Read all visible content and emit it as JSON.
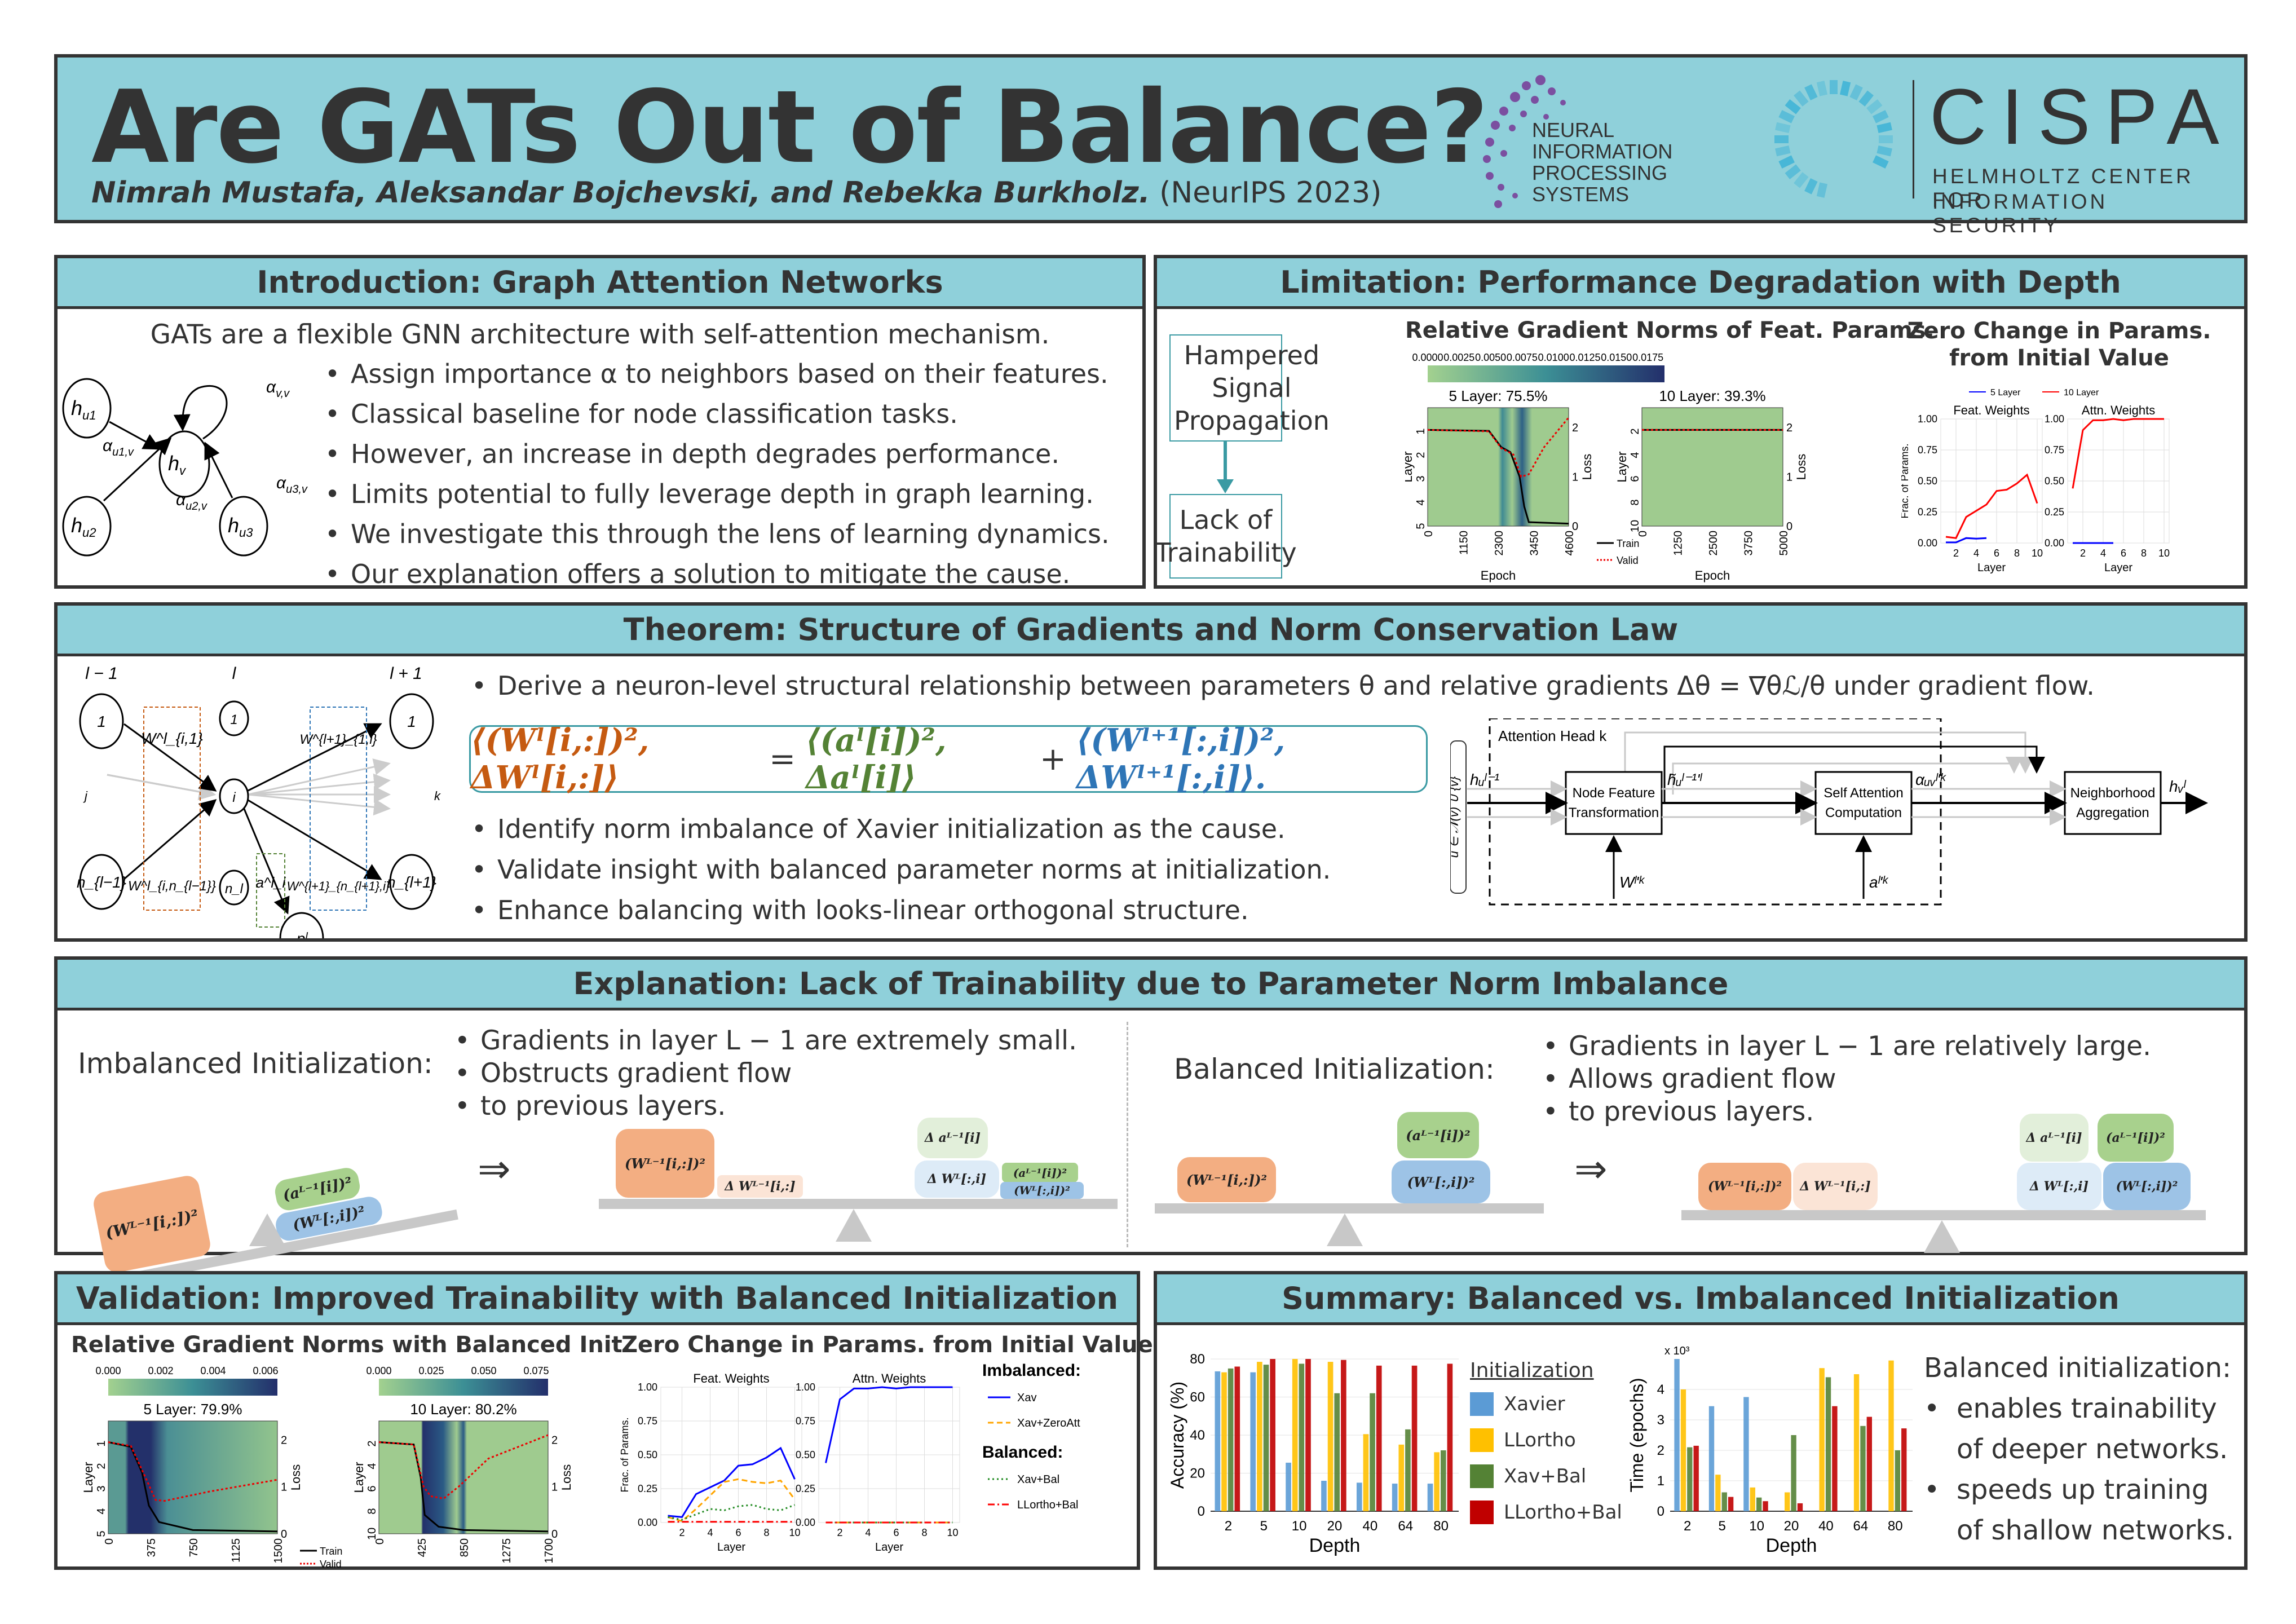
{
  "header": {
    "title": "Are GATs Out of Balance?",
    "authors": "Nimrah Mustafa, Aleksandar Bojchevski, and Rebekka Burkholz.",
    "venue": "(NeurIPS 2023)",
    "neurips_logo": [
      "NEURAL",
      "INFORMATION",
      "PROCESSING",
      "SYSTEMS"
    ],
    "cispa_logo": {
      "name": "CISPA",
      "line1": "HELMHOLTZ CENTER FOR",
      "line2": "INFORMATION SECURITY"
    }
  },
  "intro": {
    "heading": "Introduction: Graph Attention Networks",
    "lead": "GATs are a flexible GNN architecture with self-attention mechanism.",
    "bullets": [
      "Assign importance α to neighbors based on their features.",
      "Classical baseline for node classification tasks.",
      "However, an increase in depth degrades performance.",
      "Limits potential to fully leverage depth in graph learning.",
      "We investigate this through the lens of learning dynamics.",
      "Our explanation offers a solution to mitigate the cause."
    ],
    "graph": {
      "nodes": [
        "h_u1",
        "h_v",
        "h_u2",
        "h_u3"
      ],
      "edges": [
        "α_u1,v",
        "α_u2,v",
        "α_u3,v",
        "α_v,v"
      ]
    }
  },
  "limitation": {
    "heading": "Limitation: Performance Degradation with Depth",
    "box1": "Hampered Signal Propagation",
    "box2": "Lack of Trainability",
    "heatmap_title": "Relative Gradient Norms of Feat. Params.",
    "zero_title_line1": "Zero Change in Params.",
    "zero_title_line2": "from Initial Value"
  },
  "theorem": {
    "heading": "Theorem: Structure of Gradients and Norm Conservation Law",
    "bullet1": "Derive a neuron-level structural relationship between parameters θ and relative gradients Δθ = ∇θℒ/θ under gradient flow.",
    "equation": {
      "lhs": "⟨(Wˡ[i,:])², ΔWˡ[i,:]⟩",
      "eq": "=",
      "mid": "⟨(aˡ[i])², Δaˡ[i]⟩",
      "plus": "+",
      "rhs": "⟨(Wˡ⁺¹[:,i])², ΔWˡ⁺¹[:,i]⟩."
    },
    "bullets": [
      "Identify norm imbalance of Xavier initialization as the cause.",
      "Validate insight with balanced parameter norms at initialization.",
      "Enhance balancing with looks-linear orthogonal structure."
    ],
    "network": {
      "layer_labels": [
        "l − 1",
        "l",
        "l + 1"
      ],
      "nodes_left": [
        "1",
        "n_{l−1}"
      ],
      "nodes_mid": [
        "1",
        "i",
        "n_l"
      ],
      "nodes_right": [
        "1",
        "n_{l+1}"
      ],
      "out_node": "pˡ",
      "labels": [
        "W^l_{i,1}",
        "W^l_{i,n_{l−1}}",
        "a^l_i",
        "W^{l+1}_{1,i}",
        "W^{l+1}_{n_{l+1},i}",
        "j",
        "k"
      ]
    },
    "flow": {
      "head_label": "Attention Head k",
      "input_set": "u ∈ 𝒩(v) ∪ {v}",
      "input": "hᵤˡ⁻¹",
      "box1": [
        "Node Feature",
        "Transformation"
      ],
      "mid1": "h̃ᵤˡ⁻¹'ˡ",
      "box2": [
        "Self Attention",
        "Computation"
      ],
      "mid2": "αᵤᵥˡ'ᵏ",
      "box3": [
        "Neighborhood",
        "Aggregation"
      ],
      "output": "hᵥˡ",
      "param1": "Wˡ'ᵏ",
      "param2": "aˡ'ᵏ"
    }
  },
  "explanation": {
    "heading": "Explanation:  Lack of Trainability due to Parameter Norm Imbalance",
    "imbalanced": {
      "label": "Imbalanced Initialization:",
      "bullets": [
        "Gradients in layer L − 1 are extremely small.",
        "Obstructs gradient flow",
        "to previous layers."
      ],
      "blocks": {
        "w_prev": "(Wᴸ⁻¹[i,:])²",
        "dw_prev": "Δ Wᴸ⁻¹[i,:]",
        "a": "(aᴸ⁻¹[i])²",
        "da": "Δ aᴸ⁻¹[i]",
        "w": "(Wᴸ[:,i])²",
        "dw": "Δ Wᴸ[:,i]"
      }
    },
    "balanced": {
      "label": "Balanced Initialization:",
      "bullets": [
        "Gradients in layer L − 1 are relatively large.",
        "Allows gradient flow",
        "to previous layers."
      ]
    },
    "implies": "⇒"
  },
  "validation": {
    "heading": "Validation: Improved Trainability with Balanced Initialization",
    "heatmap_title": "Relative Gradient Norms with Balanced Init.",
    "zero_title": "Zero Change in Params. from Initial Value",
    "legend_imbalanced": "Imbalanced:",
    "legend_balanced": "Balanced:"
  },
  "summary": {
    "heading": "Summary: Balanced vs. Imbalanced Initialization",
    "text_title": "Balanced initialization:",
    "bullets": [
      "enables trainability",
      "of deeper networks.",
      "speeds up training",
      "of shallow networks."
    ],
    "legend_title": "Initialization"
  },
  "chart_data": [
    {
      "id": "limitation-heatmap-5",
      "type": "heatmap",
      "title": "5 Layer: 75.5%",
      "colorbar_ticks": [
        "0.0000",
        "0.0025",
        "0.0050",
        "0.0075",
        "0.0100",
        "0.0125",
        "0.0150",
        "0.0175"
      ],
      "xlabel": "Epoch",
      "ylabel": "Layer",
      "y2label": "Loss",
      "x_ticks": [
        "0",
        "1150",
        "2300",
        "3450",
        "4600"
      ],
      "y_ticks": [
        "1",
        "2",
        "3",
        "4",
        "5"
      ],
      "y2_ticks": [
        "0",
        "1",
        "2"
      ],
      "legend": [
        "Train",
        "Valid"
      ],
      "train_loss": [
        [
          0,
          1.95
        ],
        [
          2000,
          1.93
        ],
        [
          2400,
          1.6
        ],
        [
          2700,
          1.5
        ],
        [
          3000,
          1.0
        ],
        [
          3150,
          0.4
        ],
        [
          3300,
          0.08
        ],
        [
          4600,
          0.05
        ]
      ],
      "valid_loss": [
        [
          0,
          1.95
        ],
        [
          2000,
          1.92
        ],
        [
          2400,
          1.58
        ],
        [
          2800,
          1.45
        ],
        [
          3050,
          1.0
        ],
        [
          3300,
          1.05
        ],
        [
          3800,
          1.6
        ],
        [
          4600,
          2.2
        ]
      ]
    },
    {
      "id": "limitation-heatmap-10",
      "type": "heatmap",
      "title": "10 Layer: 39.3%",
      "xlabel": "Epoch",
      "ylabel": "Layer",
      "y2label": "Loss",
      "x_ticks": [
        "0",
        "1250",
        "2500",
        "3750",
        "5000"
      ],
      "y_ticks": [
        "2",
        "4",
        "6",
        "8",
        "10"
      ],
      "y2_ticks": [
        "0",
        "1",
        "2"
      ],
      "train_loss": [
        [
          0,
          1.95
        ],
        [
          5000,
          1.95
        ]
      ],
      "valid_loss": [
        [
          0,
          1.95
        ],
        [
          5000,
          1.95
        ]
      ]
    },
    {
      "id": "limitation-zero-change",
      "type": "line",
      "legend": [
        "5 Layer",
        "10 Layer"
      ],
      "panels": [
        "Feat. Weights",
        "Attn. Weights"
      ],
      "xlabel": "Layer",
      "ylabel": "Frac. of Params.",
      "ylim": [
        0,
        1
      ],
      "y_ticks": [
        "0.00",
        "0.25",
        "0.50",
        "0.75",
        "1.00"
      ],
      "x_ticks": [
        "2",
        "4",
        "6",
        "8",
        "10"
      ],
      "series": [
        {
          "name": "5 Layer",
          "panel": "Feat. Weights",
          "x": [
            1,
            2,
            3,
            4,
            5
          ],
          "values": [
            0.005,
            0.005,
            0.04,
            0.035,
            0.04
          ]
        },
        {
          "name": "10 Layer",
          "panel": "Feat. Weights",
          "x": [
            1,
            2,
            3,
            4,
            5,
            6,
            7,
            8,
            9,
            10
          ],
          "values": [
            0.05,
            0.04,
            0.21,
            0.26,
            0.31,
            0.42,
            0.43,
            0.48,
            0.55,
            0.32
          ]
        },
        {
          "name": "5 Layer",
          "panel": "Attn. Weights",
          "x": [
            1,
            2,
            3,
            4,
            5
          ],
          "values": [
            0.0,
            0.0,
            0.0,
            0.0,
            0.0
          ]
        },
        {
          "name": "10 Layer",
          "panel": "Attn. Weights",
          "x": [
            1,
            2,
            3,
            4,
            5,
            6,
            7,
            8,
            9,
            10
          ],
          "values": [
            0.44,
            0.91,
            0.99,
            0.99,
            1.0,
            0.99,
            1.0,
            1.0,
            1.0,
            1.0
          ]
        }
      ]
    },
    {
      "id": "validation-heatmap-5",
      "type": "heatmap",
      "title": "5 Layer: 79.9%",
      "colorbar_ticks": [
        "0.000",
        "0.002",
        "0.004",
        "0.006"
      ],
      "xlabel": "Epoch",
      "ylabel": "Layer",
      "y2label": "Loss",
      "x_ticks": [
        "0",
        "375",
        "750",
        "1125",
        "1500"
      ],
      "y_ticks": [
        "1",
        "2",
        "3",
        "4",
        "5"
      ],
      "y2_ticks": [
        "0",
        "1",
        "2"
      ],
      "legend": [
        "Train",
        "Valid"
      ],
      "train_loss": [
        [
          0,
          1.95
        ],
        [
          200,
          1.85
        ],
        [
          300,
          1.3
        ],
        [
          360,
          0.6
        ],
        [
          450,
          0.25
        ],
        [
          750,
          0.08
        ],
        [
          1500,
          0.05
        ]
      ],
      "valid_loss": [
        [
          0,
          1.95
        ],
        [
          200,
          1.87
        ],
        [
          330,
          1.2
        ],
        [
          420,
          0.72
        ],
        [
          500,
          0.7
        ],
        [
          900,
          0.9
        ],
        [
          1500,
          1.15
        ]
      ]
    },
    {
      "id": "validation-heatmap-10",
      "type": "heatmap",
      "title": "10 Layer: 80.2%",
      "colorbar_ticks": [
        "0.000",
        "0.025",
        "0.050",
        "0.075"
      ],
      "xlabel": "Epoch",
      "ylabel": "Layer",
      "y2label": "Loss",
      "x_ticks": [
        "0",
        "425",
        "850",
        "1275",
        "1700"
      ],
      "y_ticks": [
        "2",
        "4",
        "6",
        "8",
        "10"
      ],
      "y2_ticks": [
        "0",
        "1",
        "2"
      ],
      "train_loss": [
        [
          0,
          1.95
        ],
        [
          350,
          1.9
        ],
        [
          420,
          1.2
        ],
        [
          460,
          0.4
        ],
        [
          600,
          0.15
        ],
        [
          850,
          0.08
        ],
        [
          1700,
          0.05
        ]
      ],
      "valid_loss": [
        [
          0,
          1.95
        ],
        [
          350,
          1.9
        ],
        [
          450,
          1.0
        ],
        [
          520,
          0.8
        ],
        [
          650,
          0.75
        ],
        [
          800,
          1.0
        ],
        [
          1100,
          1.6
        ],
        [
          1700,
          2.1
        ]
      ]
    },
    {
      "id": "validation-zero-change",
      "type": "line",
      "panels": [
        "Feat. Weights",
        "Attn. Weights"
      ],
      "xlabel": "Layer",
      "ylabel": "Frac. of Params.",
      "ylim": [
        0,
        1
      ],
      "y_ticks": [
        "0.00",
        "0.25",
        "0.50",
        "0.75",
        "1.00"
      ],
      "x_ticks": [
        "2",
        "4",
        "6",
        "8",
        "10"
      ],
      "legend_groups": {
        "Imbalanced:": [
          "Xav",
          "Xav+ZeroAtt"
        ],
        "Balanced:": [
          "Xav+Bal",
          "LLortho+Bal"
        ]
      },
      "series": [
        {
          "name": "Xav",
          "panel": "Feat. Weights",
          "color": "#0000ff",
          "style": "solid",
          "values": [
            0.05,
            0.04,
            0.21,
            0.26,
            0.31,
            0.42,
            0.43,
            0.48,
            0.55,
            0.32
          ]
        },
        {
          "name": "Xav+ZeroAtt",
          "panel": "Feat. Weights",
          "color": "#ffa500",
          "style": "dashed",
          "values": [
            0.04,
            0.01,
            0.1,
            0.2,
            0.3,
            0.32,
            0.3,
            0.29,
            0.31,
            0.17
          ]
        },
        {
          "name": "Xav+Bal",
          "panel": "Feat. Weights",
          "color": "#228b22",
          "style": "dotted",
          "values": [
            0.04,
            0.02,
            0.06,
            0.1,
            0.09,
            0.12,
            0.13,
            0.1,
            0.09,
            0.13
          ]
        },
        {
          "name": "LLortho+Bal",
          "panel": "Feat. Weights",
          "color": "#ff0000",
          "style": "dashdot",
          "values": [
            0.005,
            0.005,
            0.005,
            0.005,
            0.005,
            0.005,
            0.005,
            0.005,
            0.005,
            0.005
          ]
        },
        {
          "name": "Xav",
          "panel": "Attn. Weights",
          "color": "#0000ff",
          "style": "solid",
          "values": [
            0.44,
            0.91,
            0.99,
            0.99,
            1.0,
            0.99,
            1.0,
            1.0,
            1.0,
            1.0
          ]
        },
        {
          "name": "Xav+ZeroAtt",
          "panel": "Attn. Weights",
          "color": "#ffa500",
          "style": "dashed",
          "values": [
            0,
            0,
            0,
            0,
            0,
            0,
            0,
            0,
            0,
            0
          ]
        },
        {
          "name": "Xav+Bal",
          "panel": "Attn. Weights",
          "color": "#228b22",
          "style": "dotted",
          "values": [
            0,
            0,
            0,
            0,
            0,
            0,
            0,
            0,
            0,
            0
          ]
        },
        {
          "name": "LLortho+Bal",
          "panel": "Attn. Weights",
          "color": "#ff0000",
          "style": "dashdot",
          "values": [
            0,
            0,
            0,
            0,
            0,
            0,
            0,
            0,
            0,
            0
          ]
        }
      ]
    },
    {
      "id": "summary-accuracy",
      "type": "bar",
      "categories": [
        "2",
        "5",
        "10",
        "20",
        "40",
        "64",
        "80"
      ],
      "xlabel": "Depth",
      "ylabel": "Accuracy (%)",
      "ylim": [
        0,
        80
      ],
      "y_ticks": [
        "0",
        "20",
        "40",
        "60",
        "80"
      ],
      "series": [
        {
          "name": "Xavier",
          "color": "#5b9bd5",
          "values": [
            73.5,
            73,
            25.5,
            16,
            15,
            14.5,
            14.5
          ]
        },
        {
          "name": "LLortho",
          "color": "#ffc000",
          "values": [
            73,
            78.5,
            80,
            78.5,
            40.5,
            35,
            31
          ]
        },
        {
          "name": "Xav+Bal",
          "color": "#548235",
          "values": [
            75,
            77,
            77.5,
            62,
            62,
            43,
            32
          ]
        },
        {
          "name": "LLortho+Bal",
          "color": "#c00000",
          "values": [
            76,
            80,
            80,
            79.5,
            76.5,
            76.5,
            77.5
          ]
        }
      ]
    },
    {
      "id": "summary-time",
      "type": "bar",
      "categories": [
        "2",
        "5",
        "10",
        "20",
        "40",
        "64",
        "80"
      ],
      "xlabel": "Depth",
      "ylabel": "Time (epochs)",
      "y_multiplier": "x 10³",
      "ylim": [
        0,
        5
      ],
      "y_ticks": [
        "0",
        "1",
        "2",
        "3",
        "4"
      ],
      "series": [
        {
          "name": "Xavier",
          "color": "#5b9bd5",
          "values": [
            5.0,
            3.45,
            3.75,
            0,
            0,
            0,
            0
          ]
        },
        {
          "name": "LLortho",
          "color": "#ffc000",
          "values": [
            4.0,
            1.2,
            0.78,
            0.62,
            4.7,
            4.5,
            4.95
          ]
        },
        {
          "name": "Xav+Bal",
          "color": "#548235",
          "values": [
            2.1,
            0.62,
            0.45,
            2.5,
            4.4,
            2.8,
            2.0
          ]
        },
        {
          "name": "LLortho+Bal",
          "color": "#c00000",
          "values": [
            2.15,
            0.47,
            0.33,
            0.26,
            3.45,
            3.1,
            2.72
          ]
        }
      ]
    }
  ]
}
